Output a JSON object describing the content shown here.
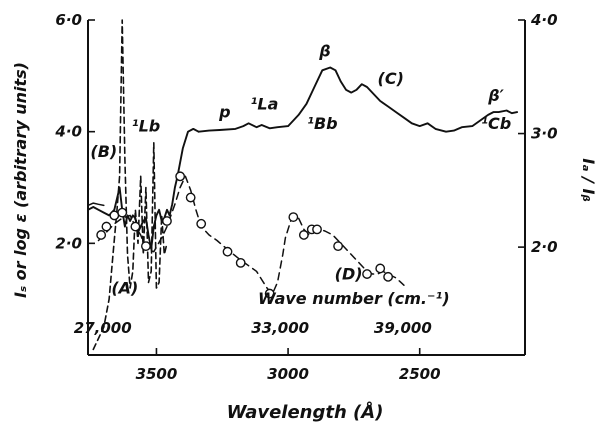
{
  "chart_data": {
    "type": "line",
    "x_axis": {
      "label": "Wavelength (Å)",
      "lim": [
        3760,
        2100
      ],
      "ticks": [
        {
          "value": 3500,
          "label": "3500"
        },
        {
          "value": 3000,
          "label": "3000"
        },
        {
          "value": 2500,
          "label": "2500"
        }
      ]
    },
    "y_axis_left": {
      "label": "Iₛ or log ε (arbitrary units)",
      "lim": [
        0,
        6
      ],
      "ticks": [
        {
          "value": 2,
          "label": "2·0"
        },
        {
          "value": 4,
          "label": "4·0"
        },
        {
          "value": 6,
          "label": "6·0"
        }
      ]
    },
    "y_axis_right": {
      "label": "Iₐ / Iᵦ",
      "lim": [
        1.05,
        4.0
      ],
      "ticks": [
        {
          "value": 2,
          "label": "2·0"
        },
        {
          "value": 3,
          "label": "3·0"
        },
        {
          "value": 4,
          "label": "4·0"
        }
      ]
    },
    "secondary_x_axis": {
      "label": "Wave number (cm.⁻¹)",
      "ticks": [
        {
          "value": 27000,
          "wavelength": 3704,
          "label": "27,000"
        },
        {
          "value": 33000,
          "wavelength": 3030,
          "label": "33,000"
        },
        {
          "value": 39000,
          "wavelength": 2564,
          "label": "39,000"
        }
      ]
    },
    "series": [
      {
        "id": "A",
        "style": "dashed",
        "x": [
          3740,
          3700,
          3680,
          3665,
          3650,
          3640,
          3630,
          3620,
          3610,
          3600,
          3590,
          3580,
          3570,
          3560,
          3550,
          3540,
          3530,
          3520,
          3510,
          3500,
          3490,
          3480,
          3470,
          3460
        ],
        "y": [
          0.1,
          0.5,
          1.0,
          1.8,
          2.6,
          3.2,
          6.0,
          3.5,
          1.8,
          1.2,
          1.5,
          2.6,
          2.0,
          3.2,
          1.8,
          3.0,
          1.3,
          1.5,
          3.8,
          1.2,
          1.3,
          2.5,
          1.8,
          2.0
        ]
      },
      {
        "id": "B",
        "style": "solid",
        "x": [
          3760,
          3740,
          3720,
          3700,
          3680,
          3660,
          3645,
          3640,
          3630,
          3620,
          3610,
          3600,
          3590,
          3580,
          3570,
          3560,
          3550,
          3540,
          3530,
          3520,
          3510,
          3500,
          3490,
          3480,
          3470,
          3460,
          3450,
          3440,
          3430,
          3420,
          3400,
          3380,
          3360,
          3340
        ],
        "y": [
          2.6,
          2.65,
          2.6,
          2.55,
          2.5,
          2.6,
          2.9,
          3.0,
          2.6,
          2.3,
          2.5,
          2.4,
          2.5,
          2.45,
          2.2,
          2.3,
          2.4,
          2.45,
          2.15,
          1.9,
          2.3,
          2.5,
          2.6,
          2.4,
          2.45,
          2.6,
          2.5,
          2.7,
          3.0,
          3.2,
          3.7,
          4.0,
          4.05,
          4.0
        ]
      },
      {
        "id": "C",
        "style": "solid",
        "x": [
          3340,
          3300,
          3260,
          3200,
          3170,
          3150,
          3120,
          3100,
          3070,
          3040,
          3000,
          2960,
          2930,
          2900,
          2870,
          2840,
          2820,
          2800,
          2780,
          2760,
          2740,
          2720,
          2700,
          2680,
          2650,
          2620,
          2590,
          2560,
          2530,
          2500,
          2470,
          2440,
          2400,
          2370,
          2340,
          2300,
          2270,
          2240,
          2220,
          2200,
          2170,
          2150,
          2130
        ],
        "y": [
          4.0,
          4.02,
          4.03,
          4.05,
          4.1,
          4.15,
          4.08,
          4.12,
          4.06,
          4.08,
          4.1,
          4.3,
          4.5,
          4.8,
          5.1,
          5.15,
          5.1,
          4.9,
          4.75,
          4.7,
          4.75,
          4.85,
          4.8,
          4.7,
          4.55,
          4.45,
          4.35,
          4.25,
          4.15,
          4.1,
          4.15,
          4.05,
          4.0,
          4.02,
          4.08,
          4.1,
          4.2,
          4.3,
          4.35,
          4.35,
          4.38,
          4.33,
          4.35
        ]
      },
      {
        "id": "D",
        "style": "dashed-markers",
        "x": [
          3720,
          3690,
          3660,
          3630,
          3600,
          3580,
          3560,
          3540,
          3510,
          3480,
          3460,
          3430,
          3410,
          3390,
          3370,
          3350,
          3330,
          3300,
          3270,
          3220,
          3180,
          3150,
          3120,
          3100,
          3080,
          3060,
          3040,
          3020,
          3010,
          2990,
          2970,
          2960,
          2940,
          2920,
          2900,
          2880,
          2860,
          2830,
          2800,
          2770,
          2740,
          2710,
          2680,
          2660,
          2640,
          2620,
          2590,
          2560
        ],
        "y": [
          2.05,
          2.2,
          2.35,
          2.45,
          2.5,
          2.3,
          2.15,
          1.9,
          1.85,
          2.1,
          2.3,
          2.7,
          3.0,
          3.2,
          2.95,
          2.6,
          2.3,
          2.15,
          2.05,
          1.85,
          1.7,
          1.6,
          1.5,
          1.35,
          1.2,
          1.09,
          1.3,
          1.8,
          2.1,
          2.4,
          2.5,
          2.45,
          2.25,
          2.15,
          2.2,
          2.25,
          2.22,
          2.15,
          2.0,
          1.85,
          1.7,
          1.55,
          1.45,
          1.45,
          1.5,
          1.45,
          1.38,
          1.25
        ],
        "markers_x": [
          3710,
          3690,
          3660,
          3630,
          3580,
          3540,
          3460,
          3410,
          3370,
          3330,
          3230,
          3180,
          3070,
          2980,
          2940,
          2910,
          2890,
          2810,
          2700,
          2650,
          2620
        ],
        "markers_y": [
          2.15,
          2.3,
          2.5,
          2.55,
          2.3,
          1.95,
          2.4,
          3.2,
          2.82,
          2.35,
          1.85,
          1.65,
          1.1,
          2.47,
          2.15,
          2.25,
          2.25,
          1.95,
          1.45,
          1.55,
          1.4
        ]
      },
      {
        "id": "ratio",
        "style": "solid-thin",
        "x": [
          3760,
          3740,
          3720,
          3700
        ],
        "y": [
          2.68,
          2.72,
          2.7,
          2.68
        ]
      }
    ],
    "annotations": [
      {
        "id": "label-a",
        "text": "(A)",
        "x": 3620,
        "y": 1.1
      },
      {
        "id": "label-b",
        "text": "(B)",
        "x": 3700,
        "y": 3.55
      },
      {
        "id": "label-c",
        "text": "(C)",
        "x": 2610,
        "y": 4.85
      },
      {
        "id": "label-d",
        "text": "(D)",
        "x": 2770,
        "y": 1.35
      },
      {
        "id": "label-1lb",
        "text": "¹Lb",
        "x": 3540,
        "y": 4.0
      },
      {
        "id": "label-p",
        "text": "p",
        "x": 3240,
        "y": 4.25
      },
      {
        "id": "label-1la",
        "text": "¹La",
        "x": 3090,
        "y": 4.4
      },
      {
        "id": "label-beta",
        "text": "β",
        "x": 2860,
        "y": 5.35
      },
      {
        "id": "label-1bb",
        "text": "¹Bb",
        "x": 2870,
        "y": 4.05
      },
      {
        "id": "label-beta-prime",
        "text": "β′",
        "x": 2210,
        "y": 4.55
      },
      {
        "id": "label-1cb",
        "text": "¹Cb",
        "x": 2210,
        "y": 4.05
      }
    ]
  }
}
